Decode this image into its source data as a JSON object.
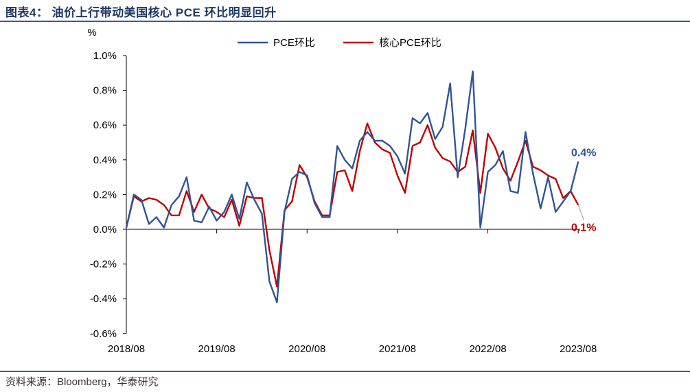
{
  "header": {
    "title": "图表4： 油价上行带动美国核心 PCE 环比明显回升"
  },
  "footer": {
    "source": "资料来源：Bloomberg，华泰研究"
  },
  "colors": {
    "pce": "#2e5597",
    "core": "#c00000",
    "rule": "#3a5a9a"
  },
  "chart_data": {
    "type": "line",
    "title": "",
    "ylabel": "%",
    "ylim": [
      -0.6,
      1.0
    ],
    "yticks": [
      -0.6,
      -0.4,
      -0.2,
      0.0,
      0.2,
      0.4,
      0.6,
      0.8,
      1.0
    ],
    "ytick_labels": [
      "-0.6%",
      "-0.4%",
      "-0.2%",
      "0.0%",
      "0.2%",
      "0.4%",
      "0.6%",
      "0.8%",
      "1.0%"
    ],
    "x_tick_labels": [
      "2018/08",
      "2019/08",
      "2020/08",
      "2021/08",
      "2022/08",
      "2023/08"
    ],
    "x_tick_index": [
      0,
      12,
      24,
      36,
      48,
      60
    ],
    "legend": {
      "position": "top-center",
      "entries": [
        "PCE环比",
        "核心PCE环比"
      ]
    },
    "series": [
      {
        "name": "PCE环比",
        "color": "#2e5597",
        "values": [
          0.01,
          0.2,
          0.17,
          0.03,
          0.07,
          0.01,
          0.14,
          0.19,
          0.3,
          0.05,
          0.04,
          0.13,
          0.05,
          0.1,
          0.2,
          0.06,
          0.27,
          0.17,
          0.09,
          -0.3,
          -0.42,
          0.1,
          0.29,
          0.33,
          0.31,
          0.15,
          0.07,
          0.07,
          0.48,
          0.4,
          0.35,
          0.51,
          0.56,
          0.51,
          0.51,
          0.48,
          0.42,
          0.32,
          0.64,
          0.61,
          0.67,
          0.52,
          0.59,
          0.84,
          0.3,
          0.58,
          0.91,
          0.01,
          0.33,
          0.37,
          0.45,
          0.22,
          0.21,
          0.56,
          0.32,
          0.12,
          0.3,
          0.1,
          0.16,
          0.22,
          0.39
        ]
      },
      {
        "name": "核心PCE环比",
        "color": "#c00000",
        "values": [
          0.01,
          0.19,
          0.16,
          0.18,
          0.17,
          0.14,
          0.08,
          0.08,
          0.22,
          0.1,
          0.2,
          0.12,
          0.1,
          0.07,
          0.17,
          0.02,
          0.19,
          0.18,
          0.18,
          -0.12,
          -0.33,
          0.11,
          0.16,
          0.37,
          0.3,
          0.16,
          0.08,
          0.08,
          0.33,
          0.34,
          0.22,
          0.45,
          0.61,
          0.5,
          0.46,
          0.44,
          0.31,
          0.21,
          0.48,
          0.5,
          0.6,
          0.47,
          0.41,
          0.39,
          0.33,
          0.36,
          0.57,
          0.21,
          0.55,
          0.47,
          0.35,
          0.28,
          0.39,
          0.51,
          0.36,
          0.34,
          0.31,
          0.29,
          0.18,
          0.22,
          0.14
        ]
      }
    ],
    "annotations": [
      {
        "text": "0.4%",
        "series": 0,
        "color": "#2e5597"
      },
      {
        "text": "0.1%",
        "series": 1,
        "color": "#c00000"
      }
    ]
  }
}
